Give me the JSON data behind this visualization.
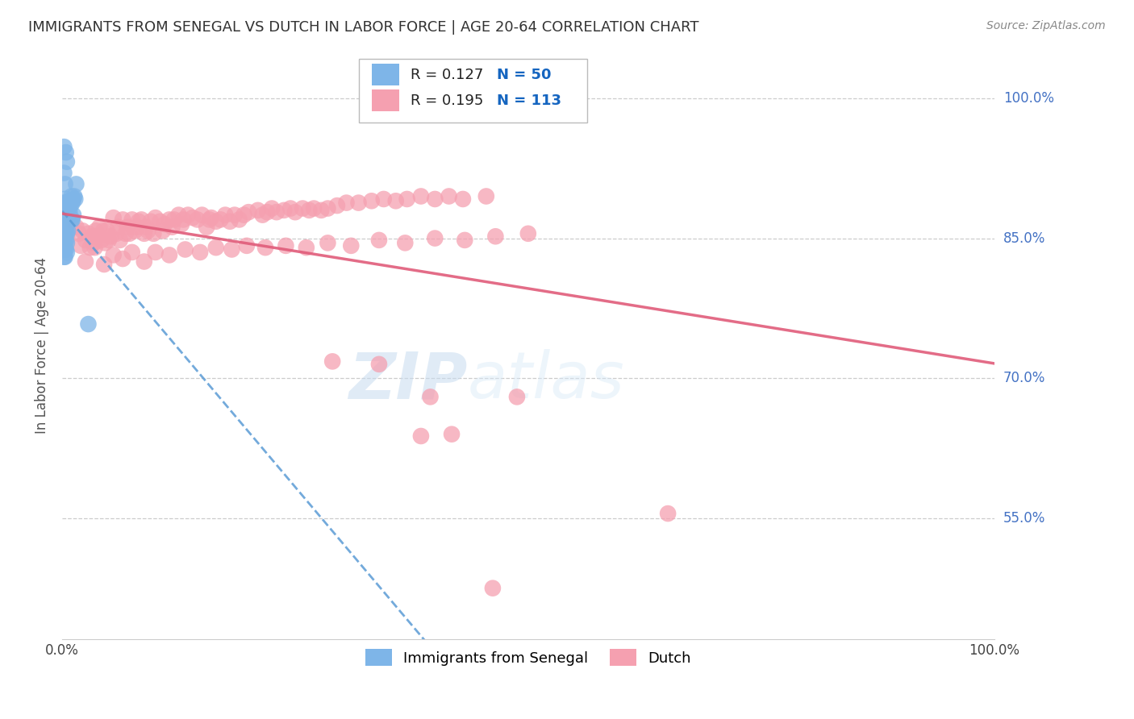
{
  "title": "IMMIGRANTS FROM SENEGAL VS DUTCH IN LABOR FORCE | AGE 20-64 CORRELATION CHART",
  "source": "Source: ZipAtlas.com",
  "ylabel": "In Labor Force | Age 20-64",
  "xlim": [
    0.0,
    1.0
  ],
  "ylim": [
    0.42,
    1.05
  ],
  "ytick_positions": [
    0.55,
    0.7,
    0.85,
    1.0
  ],
  "ytick_labels": [
    "55.0%",
    "70.0%",
    "85.0%",
    "100.0%"
  ],
  "legend_r1": "R = 0.127",
  "legend_n1": "N = 50",
  "legend_r2": "R = 0.195",
  "legend_n2": "N = 113",
  "blue_color": "#7EB5E8",
  "pink_color": "#F5A0B0",
  "trend_blue_color": "#5B9BD5",
  "trend_pink_color": "#E05C7A",
  "bg_color": "#FFFFFF",
  "grid_color": "#CCCCCC",
  "title_color": "#333333",
  "axis_label_color": "#555555",
  "right_tick_color": "#4472C4",
  "senegal_x": [
    0.002,
    0.002,
    0.002,
    0.002,
    0.002,
    0.003,
    0.003,
    0.003,
    0.003,
    0.003,
    0.003,
    0.003,
    0.004,
    0.004,
    0.004,
    0.004,
    0.004,
    0.004,
    0.005,
    0.005,
    0.005,
    0.005,
    0.005,
    0.006,
    0.006,
    0.006,
    0.007,
    0.007,
    0.008,
    0.008,
    0.009,
    0.01,
    0.01,
    0.011,
    0.011,
    0.012,
    0.012,
    0.013,
    0.014,
    0.015,
    0.001,
    0.001,
    0.002,
    0.003,
    0.003,
    0.004,
    0.005,
    0.028,
    0.002,
    0.002
  ],
  "senegal_y": [
    0.87,
    0.862,
    0.855,
    0.85,
    0.84,
    0.88,
    0.872,
    0.86,
    0.852,
    0.845,
    0.838,
    0.83,
    0.888,
    0.878,
    0.868,
    0.858,
    0.848,
    0.838,
    0.875,
    0.865,
    0.855,
    0.845,
    0.835,
    0.88,
    0.87,
    0.858,
    0.885,
    0.875,
    0.89,
    0.878,
    0.885,
    0.895,
    0.87,
    0.888,
    0.87,
    0.892,
    0.875,
    0.895,
    0.892,
    0.908,
    0.888,
    0.875,
    0.92,
    0.908,
    0.892,
    0.942,
    0.932,
    0.758,
    0.948,
    0.83
  ],
  "dutch_x": [
    0.005,
    0.01,
    0.015,
    0.018,
    0.02,
    0.022,
    0.025,
    0.028,
    0.03,
    0.032,
    0.034,
    0.036,
    0.038,
    0.04,
    0.042,
    0.044,
    0.046,
    0.048,
    0.05,
    0.052,
    0.055,
    0.058,
    0.06,
    0.062,
    0.065,
    0.068,
    0.07,
    0.072,
    0.075,
    0.078,
    0.08,
    0.082,
    0.085,
    0.088,
    0.09,
    0.092,
    0.095,
    0.098,
    0.1,
    0.105,
    0.108,
    0.11,
    0.115,
    0.118,
    0.12,
    0.125,
    0.128,
    0.13,
    0.135,
    0.14,
    0.145,
    0.15,
    0.155,
    0.158,
    0.16,
    0.165,
    0.17,
    0.175,
    0.18,
    0.185,
    0.19,
    0.195,
    0.2,
    0.21,
    0.215,
    0.22,
    0.225,
    0.23,
    0.238,
    0.245,
    0.25,
    0.258,
    0.265,
    0.27,
    0.278,
    0.285,
    0.295,
    0.305,
    0.318,
    0.332,
    0.345,
    0.358,
    0.37,
    0.385,
    0.4,
    0.415,
    0.43,
    0.455,
    0.025,
    0.035,
    0.045,
    0.055,
    0.065,
    0.075,
    0.088,
    0.1,
    0.115,
    0.132,
    0.148,
    0.165,
    0.182,
    0.198,
    0.218,
    0.24,
    0.262,
    0.285,
    0.31,
    0.34,
    0.368,
    0.4,
    0.432,
    0.465,
    0.5
  ],
  "dutch_y": [
    0.85,
    0.87,
    0.862,
    0.855,
    0.842,
    0.858,
    0.848,
    0.855,
    0.84,
    0.852,
    0.845,
    0.858,
    0.852,
    0.862,
    0.848,
    0.858,
    0.845,
    0.858,
    0.848,
    0.852,
    0.872,
    0.855,
    0.862,
    0.848,
    0.87,
    0.855,
    0.862,
    0.855,
    0.87,
    0.858,
    0.862,
    0.868,
    0.87,
    0.855,
    0.862,
    0.858,
    0.868,
    0.855,
    0.872,
    0.868,
    0.858,
    0.865,
    0.87,
    0.862,
    0.87,
    0.875,
    0.865,
    0.87,
    0.875,
    0.872,
    0.87,
    0.875,
    0.862,
    0.87,
    0.872,
    0.868,
    0.87,
    0.875,
    0.868,
    0.875,
    0.87,
    0.875,
    0.878,
    0.88,
    0.875,
    0.878,
    0.882,
    0.878,
    0.88,
    0.882,
    0.878,
    0.882,
    0.88,
    0.882,
    0.88,
    0.882,
    0.885,
    0.888,
    0.888,
    0.89,
    0.892,
    0.89,
    0.892,
    0.895,
    0.892,
    0.895,
    0.892,
    0.895,
    0.825,
    0.84,
    0.822,
    0.832,
    0.828,
    0.835,
    0.825,
    0.835,
    0.832,
    0.838,
    0.835,
    0.84,
    0.838,
    0.842,
    0.84,
    0.842,
    0.84,
    0.845,
    0.842,
    0.848,
    0.845,
    0.85,
    0.848,
    0.852,
    0.855
  ],
  "dutch_outliers_x": [
    0.29,
    0.34,
    0.395,
    0.488,
    0.385,
    0.418,
    0.65,
    0.462
  ],
  "dutch_outliers_y": [
    0.718,
    0.715,
    0.68,
    0.68,
    0.638,
    0.64,
    0.555,
    0.475
  ],
  "watermark_zip": "ZIP",
  "watermark_atlas": "atlas"
}
